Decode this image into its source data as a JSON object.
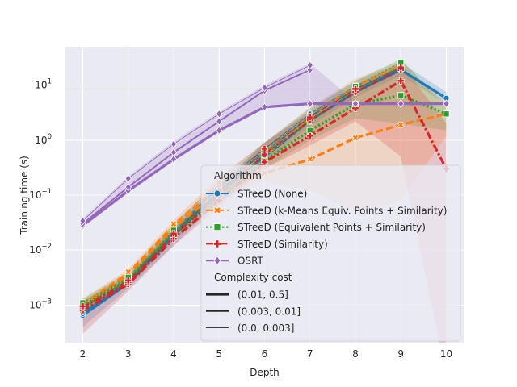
{
  "chart_data": {
    "type": "line",
    "title": "",
    "xlabel": "Depth",
    "ylabel": "Training time (s)",
    "yscale": "log",
    "ylim": [
      0.0002,
      50
    ],
    "xlim": [
      1.6,
      10.4
    ],
    "grid": true,
    "legend_position": "lower-right",
    "x_ticks": [
      "2",
      "3",
      "4",
      "5",
      "6",
      "7",
      "8",
      "9",
      "10"
    ],
    "y_ticks": [
      {
        "value": 0.001,
        "base": "10",
        "exp": "−3"
      },
      {
        "value": 0.01,
        "base": "10",
        "exp": "−2"
      },
      {
        "value": 0.1,
        "base": "10",
        "exp": "−1"
      },
      {
        "value": 1,
        "base": "10",
        "exp": "0"
      },
      {
        "value": 10,
        "base": "10",
        "exp": "1"
      }
    ],
    "legend": {
      "algorithm_title": "Algorithm",
      "cost_title": "Complexity cost",
      "algorithms": [
        {
          "label": "STreeD (None)",
          "color": "#1f77b4",
          "marker": "circle",
          "dash": "solid"
        },
        {
          "label": "STreeD (k-Means Equiv. Points + Similarity)",
          "color": "#ff7f0e",
          "marker": "x",
          "dash": "dash"
        },
        {
          "label": "STreeD (Equivalent Points + Similarity)",
          "color": "#2ca02c",
          "marker": "square",
          "dash": "dot"
        },
        {
          "label": "STreeD (Similarity)",
          "color": "#d62728",
          "marker": "plus",
          "dash": "dashdot"
        },
        {
          "label": "OSRT",
          "color": "#9467bd",
          "marker": "diamond",
          "dash": "solid"
        }
      ],
      "costs": [
        {
          "label": "(0.01, 0.5]",
          "width": "thick"
        },
        {
          "label": "(0.003, 0.01]",
          "width": "medium"
        },
        {
          "label": "(0.0, 0.003]",
          "width": "thin"
        }
      ]
    },
    "series": [
      {
        "algorithm": 0,
        "cost": 0,
        "x": [
          2,
          3,
          4,
          5,
          6,
          7,
          8,
          9,
          10
        ],
        "y": [
          0.00065,
          0.0025,
          0.018,
          0.12,
          0.5,
          2.3,
          7.5,
          19,
          5.8
        ]
      },
      {
        "algorithm": 0,
        "cost": 1,
        "x": [
          2,
          3,
          4,
          5,
          6,
          7,
          8,
          9
        ],
        "y": [
          0.0007,
          0.0027,
          0.02,
          0.14,
          0.6,
          2.7,
          8.5,
          20
        ]
      },
      {
        "algorithm": 0,
        "cost": 2,
        "x": [
          2,
          3,
          4,
          5,
          6,
          7,
          8,
          9
        ],
        "y": [
          0.00075,
          0.003,
          0.022,
          0.15,
          0.7,
          3.0,
          9.5,
          21
        ]
      },
      {
        "algorithm": 1,
        "cost": 0,
        "x": [
          2,
          3,
          4,
          5,
          6,
          7,
          8,
          9,
          10
        ],
        "y": [
          0.001,
          0.0035,
          0.025,
          0.12,
          0.25,
          0.45,
          1.1,
          1.9,
          3.0
        ]
      },
      {
        "algorithm": 1,
        "cost": 1,
        "x": [
          2,
          3,
          4,
          5,
          6,
          7,
          8,
          9
        ],
        "y": [
          0.001,
          0.0038,
          0.028,
          0.15,
          0.5,
          2.5,
          9.5,
          22
        ]
      },
      {
        "algorithm": 1,
        "cost": 2,
        "x": [
          2,
          3,
          4,
          5,
          6,
          7,
          8,
          9
        ],
        "y": [
          0.0011,
          0.004,
          0.03,
          0.17,
          0.6,
          2.8,
          10,
          24
        ]
      },
      {
        "algorithm": 2,
        "cost": 0,
        "x": [
          2,
          3,
          4,
          5,
          6,
          7,
          8,
          9,
          10
        ],
        "y": [
          0.0009,
          0.0028,
          0.019,
          0.09,
          0.42,
          1.5,
          4.5,
          6.5,
          3.0
        ]
      },
      {
        "algorithm": 2,
        "cost": 1,
        "x": [
          2,
          3,
          4,
          5,
          6,
          7,
          8,
          9
        ],
        "y": [
          0.001,
          0.003,
          0.021,
          0.1,
          0.55,
          2.2,
          8.0,
          22
        ]
      },
      {
        "algorithm": 2,
        "cost": 2,
        "x": [
          2,
          3,
          4,
          5,
          6,
          7,
          8,
          9
        ],
        "y": [
          0.0011,
          0.0032,
          0.023,
          0.11,
          0.65,
          2.6,
          9.5,
          26
        ]
      },
      {
        "algorithm": 3,
        "cost": 0,
        "x": [
          2,
          3,
          4,
          5,
          6,
          7,
          8,
          9,
          10
        ],
        "y": [
          0.0008,
          0.0024,
          0.016,
          0.08,
          0.4,
          1.2,
          3.8,
          12,
          0.3
        ]
      },
      {
        "algorithm": 3,
        "cost": 1,
        "x": [
          2,
          3,
          4,
          5,
          6,
          7,
          8,
          9
        ],
        "y": [
          0.0009,
          0.0026,
          0.018,
          0.1,
          0.55,
          2.3,
          7.5,
          19
        ]
      },
      {
        "algorithm": 3,
        "cost": 2,
        "x": [
          2,
          3,
          4,
          5,
          6,
          7,
          8,
          9
        ],
        "y": [
          0.00095,
          0.0028,
          0.02,
          0.12,
          0.7,
          2.6,
          8.5,
          21
        ]
      },
      {
        "algorithm": 4,
        "cost": 0,
        "x": [
          2,
          3,
          4,
          5,
          6,
          7,
          8,
          9,
          10
        ],
        "y": [
          0.028,
          0.12,
          0.45,
          1.5,
          4.0,
          4.6,
          4.6,
          4.6,
          4.6
        ]
      },
      {
        "algorithm": 4,
        "cost": 1,
        "x": [
          2,
          3,
          4,
          5,
          6,
          7
        ],
        "y": [
          0.03,
          0.14,
          0.6,
          2.2,
          8.0,
          19
        ]
      },
      {
        "algorithm": 4,
        "cost": 2,
        "x": [
          2,
          3,
          4,
          5,
          6,
          7
        ],
        "y": [
          0.034,
          0.2,
          0.85,
          3.0,
          9.0,
          23
        ]
      }
    ],
    "bands": [
      {
        "algorithm": 0,
        "x": [
          2,
          3,
          4,
          5,
          6,
          7,
          8,
          9,
          10
        ],
        "lower": [
          0.0004,
          0.002,
          0.012,
          0.08,
          0.4,
          1.8,
          6,
          15,
          4.5
        ],
        "upper": [
          0.001,
          0.0035,
          0.028,
          0.2,
          0.9,
          3.8,
          12,
          26,
          7.5
        ]
      },
      {
        "algorithm": 1,
        "x": [
          2,
          3,
          4,
          5,
          6,
          7,
          8,
          9,
          10
        ],
        "lower": [
          0.0008,
          0.003,
          0.02,
          0.09,
          0.18,
          0.12,
          0.05,
          0.08,
          1.2
        ],
        "upper": [
          0.0013,
          0.0045,
          0.035,
          0.22,
          0.9,
          4.0,
          13,
          28,
          4.5
        ]
      },
      {
        "algorithm": 2,
        "x": [
          2,
          3,
          4,
          5,
          6,
          7,
          8,
          9,
          10
        ],
        "lower": [
          0.0007,
          0.0022,
          0.015,
          0.07,
          0.3,
          1.0,
          2.5,
          2.0,
          1.5
        ],
        "upper": [
          0.0013,
          0.004,
          0.03,
          0.15,
          0.9,
          3.5,
          12,
          30,
          4.0
        ]
      },
      {
        "algorithm": 3,
        "x": [
          2,
          3,
          4,
          5,
          6,
          7,
          8,
          9,
          10
        ],
        "lower": [
          0.0003,
          0.0018,
          0.012,
          0.06,
          0.3,
          0.8,
          2.2,
          0.5,
          5e-05
        ],
        "upper": [
          0.0012,
          0.0035,
          0.025,
          0.15,
          0.9,
          3.2,
          10,
          25,
          2.0
        ]
      },
      {
        "algorithm": 4,
        "x": [
          2,
          3,
          4,
          5,
          6,
          7,
          8,
          9,
          10
        ],
        "lower": [
          0.026,
          0.11,
          0.42,
          1.4,
          3.8,
          4.4,
          4.4,
          4.4,
          4.4
        ],
        "upper": [
          0.037,
          0.22,
          0.95,
          3.3,
          10,
          25,
          5,
          5,
          5
        ]
      }
    ]
  }
}
